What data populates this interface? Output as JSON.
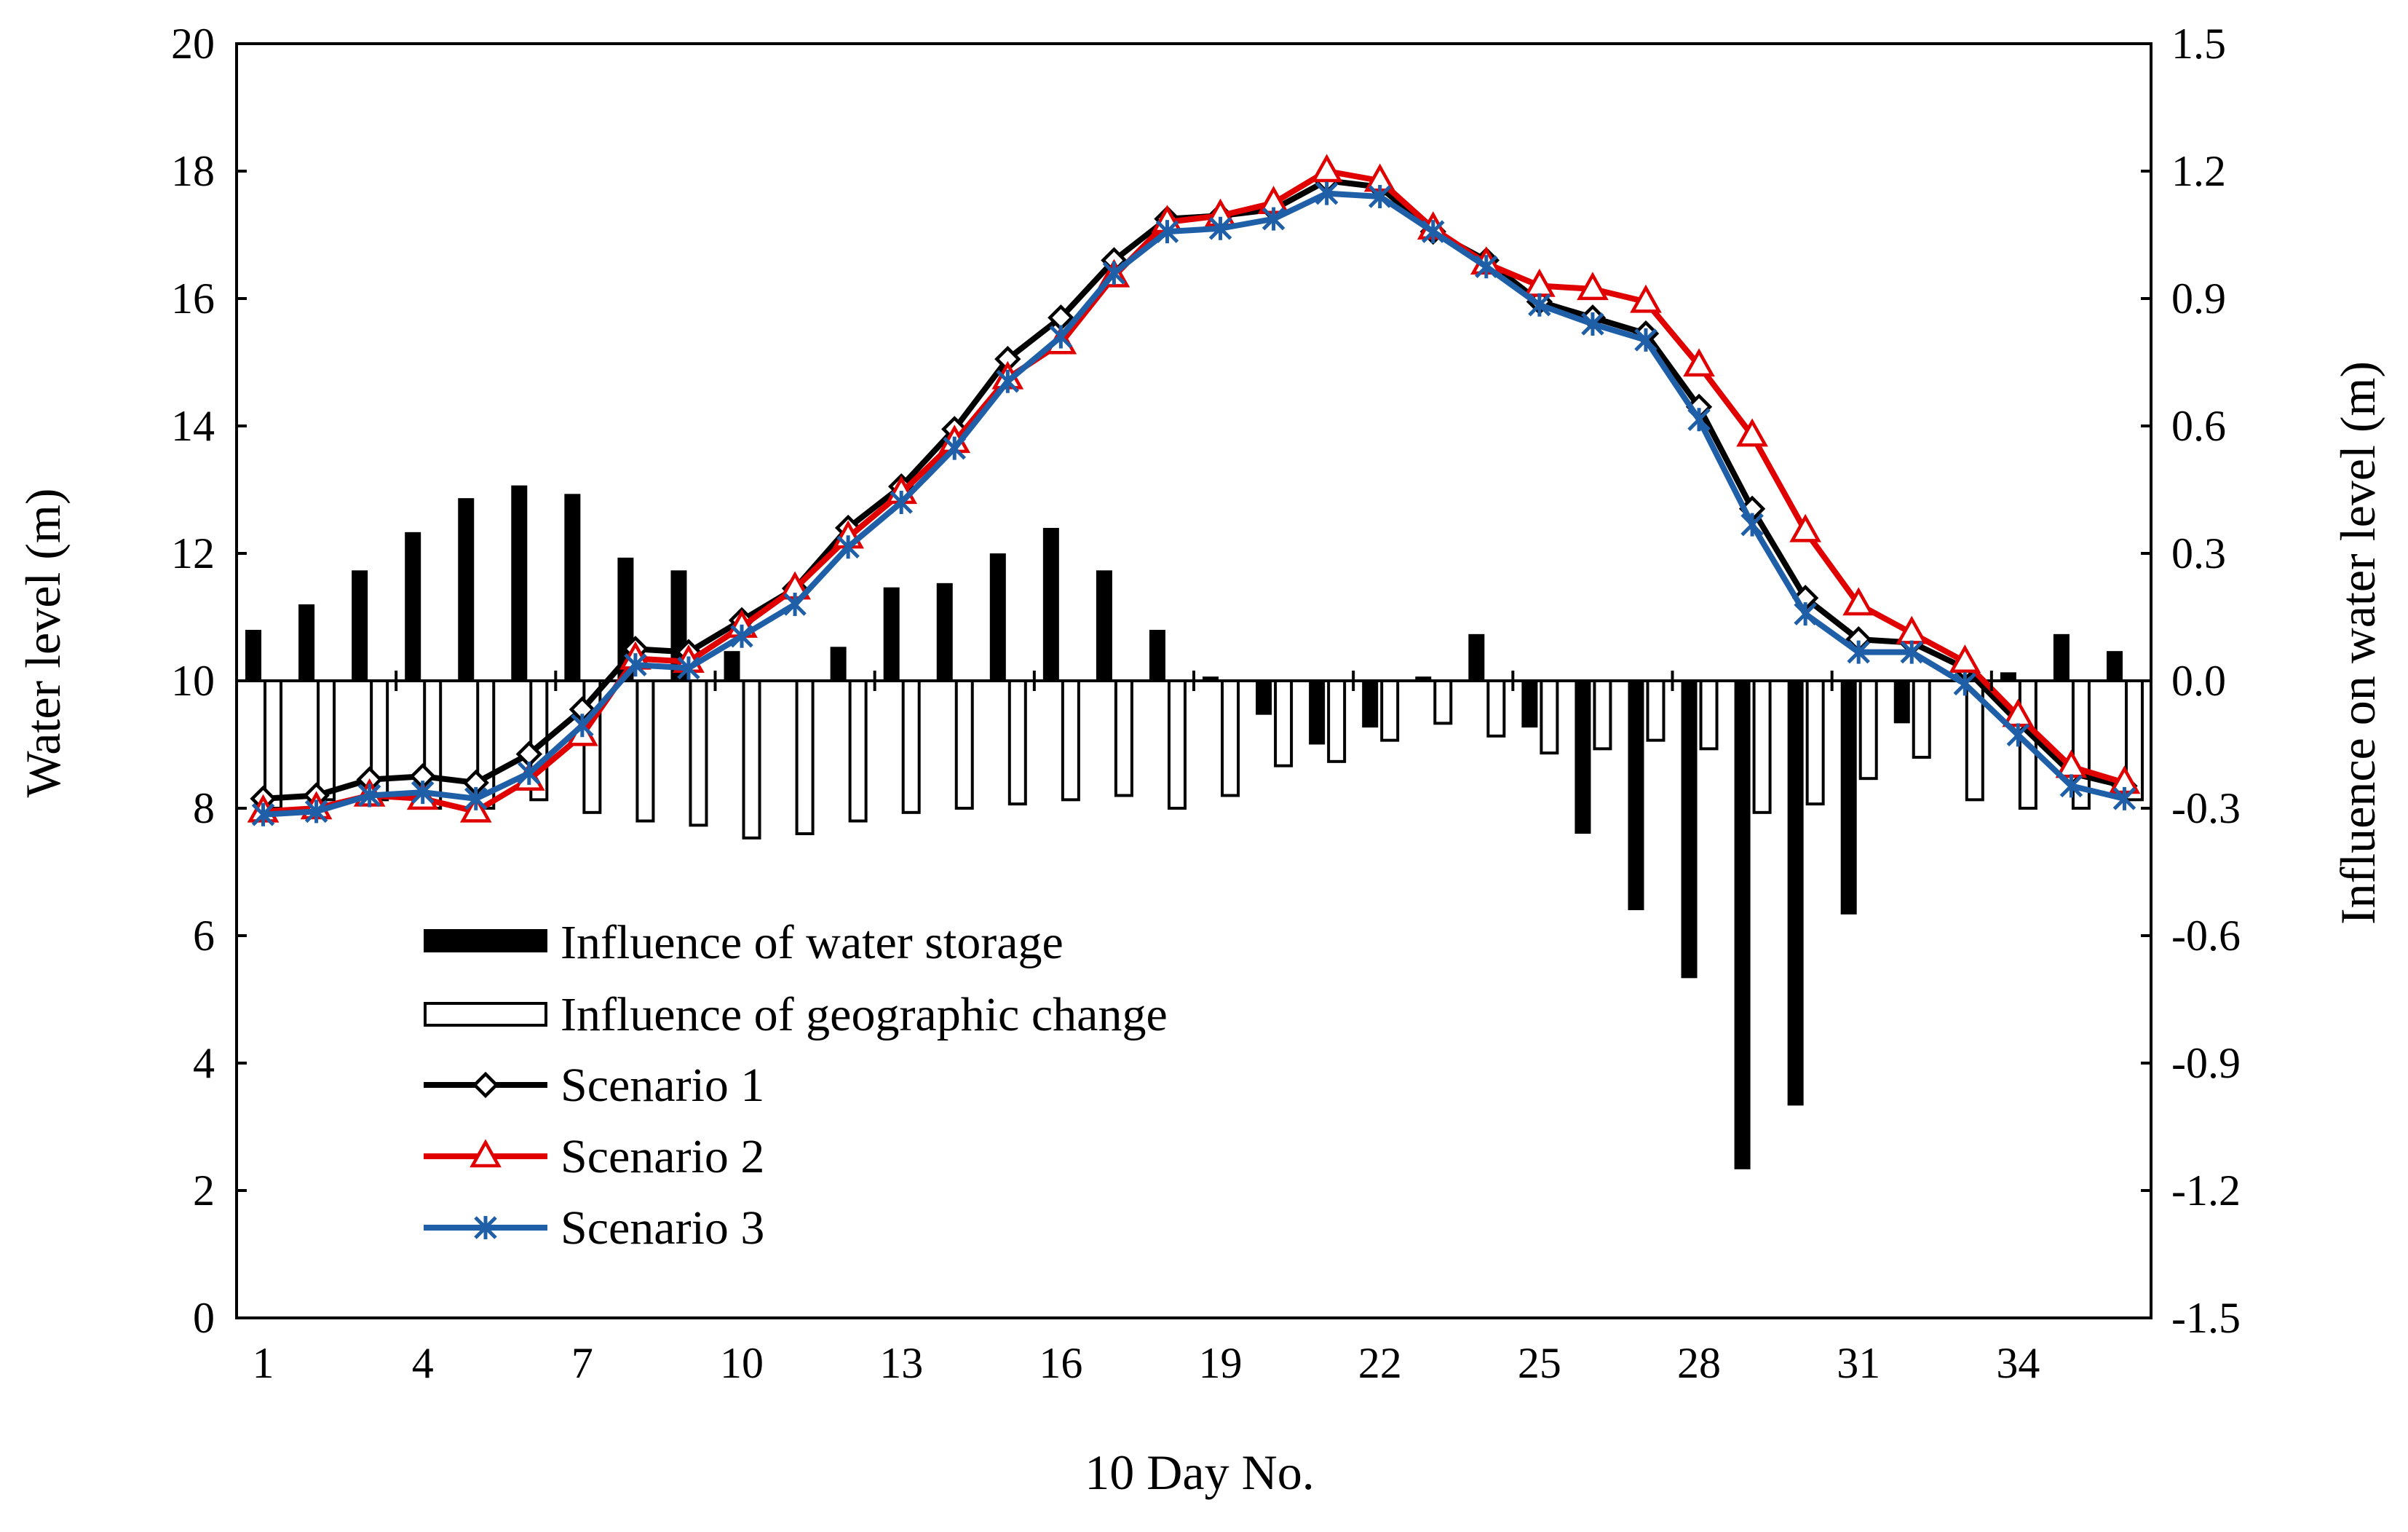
{
  "chart_data": {
    "type": "combo-bar-line",
    "xlabel": "10 Day No.",
    "ylabel_left": "Water level (m)",
    "ylabel_right": "Influence on water level (m)",
    "ylim_left": [
      0,
      20
    ],
    "ylim_right": [
      -1.5,
      1.5
    ],
    "x": [
      1,
      2,
      3,
      4,
      5,
      6,
      7,
      8,
      9,
      10,
      11,
      12,
      13,
      14,
      15,
      16,
      17,
      18,
      19,
      20,
      21,
      22,
      23,
      24,
      25,
      26,
      27,
      28,
      29,
      30,
      31,
      32,
      33,
      34,
      35,
      36
    ],
    "x_ticks": [
      1,
      4,
      7,
      10,
      13,
      16,
      19,
      22,
      25,
      28,
      31,
      34
    ],
    "x_tick_labels": [
      "1",
      "4",
      "7",
      "10",
      "13",
      "16",
      "19",
      "22",
      "25",
      "28",
      "31",
      "34"
    ],
    "y_left_ticks": [
      0,
      2,
      4,
      6,
      8,
      10,
      12,
      14,
      16,
      18,
      20
    ],
    "y_left_tick_labels": [
      "0",
      "2",
      "4",
      "6",
      "8",
      "10",
      "12",
      "14",
      "16",
      "18",
      "20"
    ],
    "y_right_ticks": [
      -1.5,
      -1.2,
      -0.9,
      -0.6,
      -0.3,
      0.0,
      0.3,
      0.6,
      0.9,
      1.2,
      1.5
    ],
    "y_right_tick_labels": [
      "-1.5",
      "-1.2",
      "-0.9",
      "-0.6",
      "-0.3",
      "0.0",
      "0.3",
      "0.6",
      "0.9",
      "1.2",
      "1.5"
    ],
    "bars": [
      {
        "name": "Influence of water storage",
        "axis": "right",
        "fill": "#000000",
        "values": [
          0.12,
          0.18,
          0.26,
          0.35,
          0.43,
          0.46,
          0.44,
          0.29,
          0.26,
          0.07,
          0.0,
          0.08,
          0.22,
          0.23,
          0.3,
          0.36,
          0.26,
          0.12,
          0.01,
          -0.08,
          -0.15,
          -0.11,
          0.01,
          0.11,
          -0.11,
          -0.36,
          -0.54,
          -0.7,
          -1.15,
          -1.0,
          -0.55,
          -0.1,
          0.0,
          0.02,
          0.11,
          0.07
        ]
      },
      {
        "name": "Influence of geographic change",
        "axis": "right",
        "fill": "#ffffff",
        "values": [
          -0.3,
          -0.28,
          -0.28,
          -0.3,
          -0.3,
          -0.28,
          -0.31,
          -0.33,
          -0.34,
          -0.37,
          -0.36,
          -0.33,
          -0.31,
          -0.3,
          -0.29,
          -0.28,
          -0.27,
          -0.3,
          -0.27,
          -0.2,
          -0.19,
          -0.14,
          -0.1,
          -0.13,
          -0.17,
          -0.16,
          -0.14,
          -0.16,
          -0.31,
          -0.29,
          -0.23,
          -0.18,
          -0.28,
          -0.3,
          -0.3,
          -0.28
        ]
      }
    ],
    "series": [
      {
        "name": "Scenario 1",
        "axis": "left",
        "color": "#000000",
        "marker": "diamond",
        "values": [
          8.15,
          8.2,
          8.45,
          8.5,
          8.4,
          8.85,
          9.55,
          10.5,
          10.45,
          10.95,
          11.45,
          12.4,
          13.05,
          13.95,
          15.05,
          15.7,
          16.6,
          17.25,
          17.3,
          17.4,
          17.85,
          17.75,
          17.05,
          16.6,
          15.95,
          15.7,
          15.45,
          14.3,
          12.7,
          11.3,
          10.65,
          10.6,
          10.2,
          9.35,
          8.55,
          8.35
        ]
      },
      {
        "name": "Scenario 2",
        "axis": "left",
        "color": "#e00000",
        "marker": "triangle",
        "values": [
          7.95,
          8.0,
          8.2,
          8.15,
          7.95,
          8.45,
          9.15,
          10.35,
          10.3,
          10.85,
          11.45,
          12.25,
          12.95,
          13.75,
          14.75,
          15.3,
          16.35,
          17.2,
          17.3,
          17.5,
          18.0,
          17.85,
          17.1,
          16.55,
          16.2,
          16.15,
          15.95,
          14.95,
          13.85,
          12.35,
          11.2,
          10.75,
          10.3,
          9.45,
          8.65,
          8.4
        ]
      },
      {
        "name": "Scenario 3",
        "axis": "left",
        "color": "#1f5fa8",
        "marker": "star",
        "values": [
          7.9,
          7.95,
          8.2,
          8.25,
          8.15,
          8.55,
          9.3,
          10.25,
          10.2,
          10.7,
          11.2,
          12.1,
          12.8,
          13.65,
          14.7,
          15.4,
          16.4,
          17.05,
          17.1,
          17.25,
          17.65,
          17.6,
          17.05,
          16.5,
          15.9,
          15.6,
          15.35,
          14.1,
          12.45,
          11.05,
          10.45,
          10.45,
          9.95,
          9.15,
          8.35,
          8.15
        ]
      }
    ],
    "legend": {
      "placement": "bottom-left",
      "entries": [
        "Influence of water storage",
        "Influence of geographic change",
        "Scenario 1",
        "Scenario 2",
        "Scenario 3"
      ]
    }
  }
}
